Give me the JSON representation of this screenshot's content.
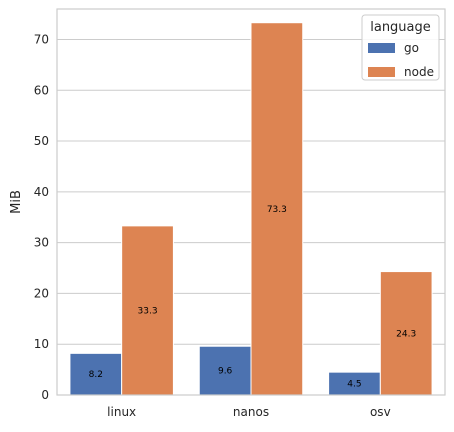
{
  "chart_data": {
    "type": "bar",
    "categories": [
      "linux",
      "nanos",
      "osv"
    ],
    "series": [
      {
        "name": "go",
        "values": [
          8.2,
          9.6,
          4.5
        ],
        "color": "#4c72b0"
      },
      {
        "name": "node",
        "values": [
          33.3,
          73.3,
          24.3
        ],
        "color": "#dd8452"
      }
    ],
    "data_labels": [
      [
        "8.2",
        "9.6",
        "4.5"
      ],
      [
        "33.3",
        "73.3",
        "24.3"
      ]
    ],
    "ylabel": "MiB",
    "xlabel": "",
    "ylim": [
      0,
      76
    ],
    "yticks": [
      0,
      10,
      20,
      30,
      40,
      50,
      60,
      70
    ],
    "grid": true,
    "legend": {
      "title": "language",
      "placement": "top-right"
    }
  }
}
